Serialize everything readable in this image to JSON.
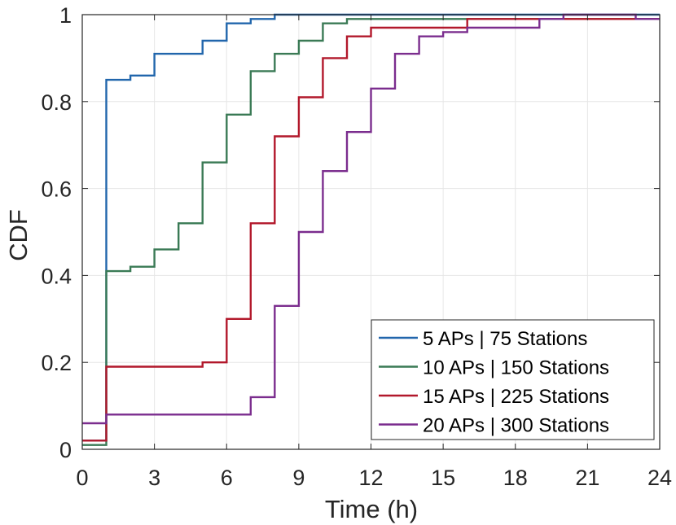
{
  "chart_data": {
    "type": "line",
    "step": true,
    "title": "",
    "xlabel": "Time (h)",
    "ylabel": "CDF",
    "xlim": [
      0,
      24
    ],
    "ylim": [
      0,
      1
    ],
    "xticks": [
      0,
      3,
      6,
      9,
      12,
      15,
      18,
      21,
      24
    ],
    "xtick_labels": [
      "0",
      "3",
      "6",
      "9",
      "12",
      "15",
      "18",
      "21",
      "24"
    ],
    "yticks": [
      0,
      0.2,
      0.4,
      0.6,
      0.8,
      1
    ],
    "ytick_labels": [
      "0",
      "0.2",
      "0.4",
      "0.6",
      "0.8",
      "1"
    ],
    "grid": true,
    "legend_position": "bottom-right",
    "series": [
      {
        "name": "5 APs | 75 Stations",
        "color": "#2166ac",
        "x": [
          0,
          1,
          1,
          2,
          2,
          3,
          3,
          5,
          5,
          6,
          6,
          7,
          7,
          8,
          8,
          24
        ],
        "y": [
          0.02,
          0.02,
          0.85,
          0.85,
          0.86,
          0.86,
          0.91,
          0.91,
          0.94,
          0.94,
          0.98,
          0.98,
          0.99,
          0.99,
          1.0,
          1.0
        ]
      },
      {
        "name": "10 APs | 150 Stations",
        "color": "#3a7a55",
        "x": [
          0,
          1,
          1,
          2,
          2,
          3,
          3,
          4,
          4,
          5,
          5,
          6,
          6,
          7,
          7,
          8,
          8,
          9,
          9,
          10,
          10,
          11,
          11,
          24
        ],
        "y": [
          0.01,
          0.01,
          0.41,
          0.41,
          0.42,
          0.42,
          0.46,
          0.46,
          0.52,
          0.52,
          0.66,
          0.66,
          0.77,
          0.77,
          0.87,
          0.87,
          0.91,
          0.91,
          0.94,
          0.94,
          0.98,
          0.98,
          0.99,
          0.99
        ]
      },
      {
        "name": "15 APs | 225 Stations",
        "color": "#b2182b",
        "x": [
          0,
          1,
          1,
          5,
          5,
          6,
          6,
          7,
          7,
          8,
          8,
          9,
          9,
          10,
          10,
          11,
          11,
          12,
          12,
          16,
          16,
          24
        ],
        "y": [
          0.02,
          0.02,
          0.19,
          0.19,
          0.2,
          0.2,
          0.3,
          0.3,
          0.52,
          0.52,
          0.72,
          0.72,
          0.81,
          0.81,
          0.9,
          0.9,
          0.95,
          0.95,
          0.97,
          0.97,
          0.99,
          0.99
        ]
      },
      {
        "name": "20 APs | 300 Stations",
        "color": "#7b2d8e",
        "x": [
          0,
          1,
          1,
          7,
          7,
          8,
          8,
          9,
          9,
          10,
          10,
          11,
          11,
          12,
          12,
          13,
          13,
          14,
          14,
          15,
          15,
          16,
          16,
          19,
          19,
          20,
          20,
          23,
          23,
          24
        ],
        "y": [
          0.06,
          0.06,
          0.08,
          0.08,
          0.12,
          0.12,
          0.33,
          0.33,
          0.5,
          0.5,
          0.64,
          0.64,
          0.73,
          0.73,
          0.83,
          0.83,
          0.91,
          0.91,
          0.95,
          0.95,
          0.96,
          0.96,
          0.97,
          0.97,
          0.99,
          0.99,
          1.0,
          1.0,
          0.99,
          0.99
        ]
      }
    ]
  }
}
